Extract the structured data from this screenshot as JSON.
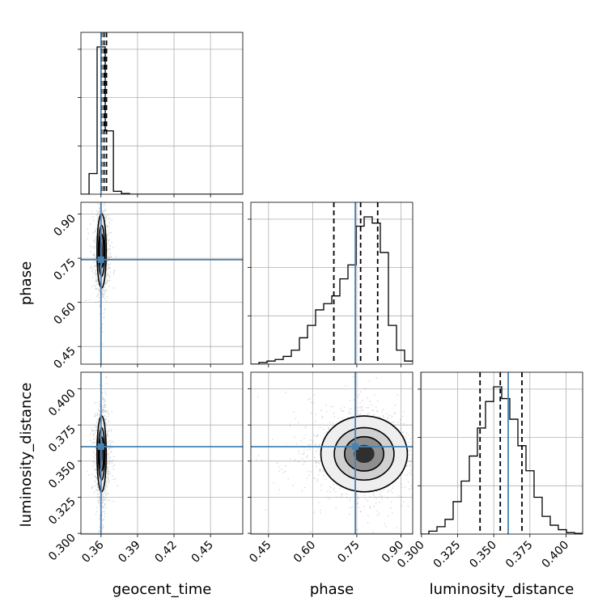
{
  "chart_data": {
    "type": "corner",
    "parameters": [
      "geocent_time",
      "phase",
      "luminosity_distance"
    ],
    "ranges": {
      "geocent_time": [
        0.3435,
        0.4765
      ],
      "phase": [
        0.39,
        0.94
      ],
      "luminosity_distance": [
        0.2995,
        0.4115
      ]
    },
    "ticks": {
      "geocent_time": [
        "0.36",
        "0.39",
        "0.42",
        "0.45"
      ],
      "phase": [
        "0.45",
        "0.60",
        "0.75",
        "0.90"
      ],
      "luminosity_distance": [
        "0.300",
        "0.325",
        "0.350",
        "0.375",
        "0.400"
      ]
    },
    "truths": {
      "geocent_time": 0.36,
      "phase": 0.745,
      "luminosity_distance": 0.36
    },
    "quantiles": {
      "geocent_time": [
        0.3605,
        0.3625,
        0.3645
      ],
      "phase": [
        0.672,
        0.763,
        0.821
      ],
      "luminosity_distance": [
        0.3405,
        0.3545,
        0.3695
      ]
    },
    "histograms": {
      "geocent_time": {
        "edges": [
          0.3435,
          0.3502,
          0.3568,
          0.3635,
          0.3702,
          0.3768,
          0.3835,
          0.3902,
          0.4765
        ],
        "counts": [
          0.0,
          0.14,
          1.0,
          0.43,
          0.02,
          0.005,
          0.0,
          0.0
        ]
      },
      "phase": {
        "edges": [
          0.39,
          0.4175,
          0.445,
          0.4725,
          0.5,
          0.5275,
          0.555,
          0.5825,
          0.61,
          0.6375,
          0.665,
          0.6925,
          0.72,
          0.7475,
          0.775,
          0.8025,
          0.83,
          0.8575,
          0.885,
          0.9125,
          0.94
        ],
        "counts": [
          0.0,
          0.01,
          0.02,
          0.03,
          0.05,
          0.09,
          0.17,
          0.25,
          0.35,
          0.39,
          0.44,
          0.55,
          0.64,
          0.89,
          0.95,
          0.91,
          0.72,
          0.25,
          0.09,
          0.02
        ]
      },
      "luminosity_distance": {
        "edges": [
          0.2995,
          0.3051,
          0.3107,
          0.3163,
          0.3219,
          0.3275,
          0.3331,
          0.3387,
          0.3443,
          0.3499,
          0.3555,
          0.3611,
          0.3667,
          0.3723,
          0.3779,
          0.3835,
          0.3891,
          0.3947,
          0.4003,
          0.4059,
          0.4115
        ],
        "counts": [
          0.0,
          0.02,
          0.05,
          0.1,
          0.22,
          0.36,
          0.53,
          0.72,
          0.9,
          1.0,
          0.92,
          0.78,
          0.6,
          0.43,
          0.25,
          0.12,
          0.06,
          0.03,
          0.01,
          0.005
        ]
      }
    },
    "scatter_2d": [
      {
        "x": "geocent_time",
        "y": "phase",
        "center": [
          0.3605,
          0.775
        ],
        "sigma": [
          0.0018,
          0.06
        ]
      },
      {
        "x": "geocent_time",
        "y": "luminosity_distance",
        "center": [
          0.3605,
          0.355
        ],
        "sigma": [
          0.0018,
          0.0125
        ]
      },
      {
        "x": "phase",
        "y": "luminosity_distance",
        "center": [
          0.775,
          0.355
        ],
        "sigma": [
          0.07,
          0.0125
        ]
      }
    ],
    "colors": {
      "truth": "#4682b4",
      "line": "#000000",
      "grid": "#b0b0b0",
      "points": "#7f7f7f"
    }
  }
}
